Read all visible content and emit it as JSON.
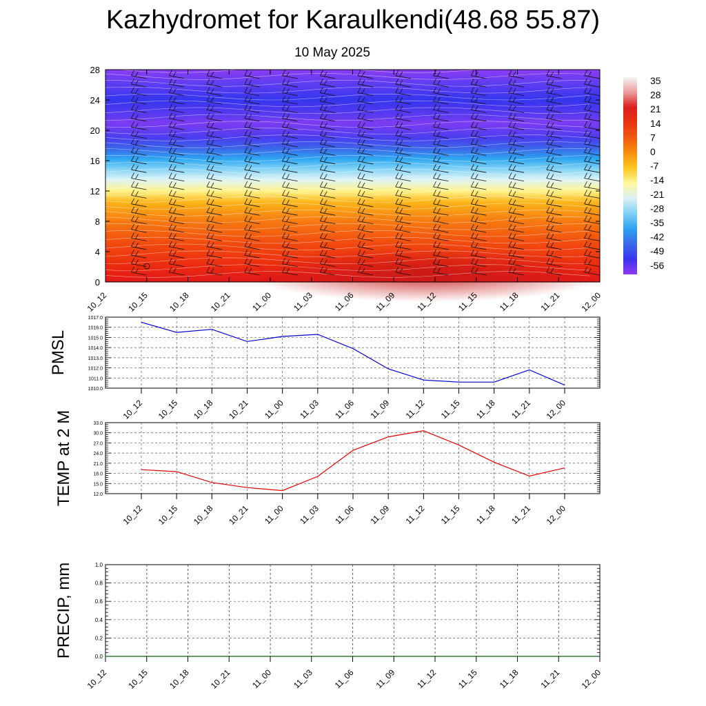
{
  "header": {
    "title": "Kazhydromet for Karaulkendi(48.68 55.87)",
    "subtitle": "10 May 2025"
  },
  "chart_data": [
    {
      "type": "heatmap",
      "name": "cross-section",
      "x_ticks": [
        "10_12",
        "10_15",
        "10_18",
        "10_21",
        "11_00",
        "11_03",
        "11_06",
        "11_09",
        "11_12",
        "11_15",
        "11_18",
        "11_21",
        "12_00"
      ],
      "y_ticks": [
        0,
        4,
        8,
        12,
        16,
        20,
        24,
        28
      ],
      "ylim": [
        0,
        28
      ],
      "colorbar": {
        "labels": [
          "35",
          "28",
          "21",
          "14",
          "7",
          "0",
          "-7",
          "-14",
          "-21",
          "-28",
          "-35",
          "-42",
          "-49",
          "-56"
        ],
        "colors": [
          "#f4f4f4",
          "#ee9999",
          "#d91e1e",
          "#e83310",
          "#f05a10",
          "#f8900c",
          "#fcc820",
          "#fff8a0",
          "#d8f0f4",
          "#7ed0f4",
          "#2ea2f0",
          "#3a6ae8",
          "#3d35f0",
          "#8a3cf0"
        ]
      },
      "field": "temperature",
      "contours": true,
      "wind_barbs": true
    },
    {
      "type": "line",
      "name": "pmsl",
      "ylabel": "PMSL",
      "x": [
        "10_12",
        "10_15",
        "10_18",
        "10_21",
        "11_00",
        "11_03",
        "11_06",
        "11_09",
        "11_12",
        "11_15",
        "11_18",
        "11_21",
        "12_00"
      ],
      "series": [
        {
          "values": [
            1016.5,
            1015.5,
            1015.8,
            1014.6,
            1015.1,
            1015.3,
            1013.9,
            1011.9,
            1010.8,
            1010.6,
            1010.6,
            1011.8,
            1010.3
          ],
          "color": "#0000cc"
        }
      ],
      "ylim": [
        1010.0,
        1017.0
      ],
      "y_ticks": [
        "1010.0",
        "1011.0",
        "1012.0",
        "1013.0",
        "1014.0",
        "1015.0",
        "1016.0",
        "1017.0"
      ],
      "grid": true
    },
    {
      "type": "line",
      "name": "temp",
      "ylabel": "TEMP at 2 M",
      "x": [
        "10_12",
        "10_15",
        "10_18",
        "10_21",
        "11_00",
        "11_03",
        "11_06",
        "11_09",
        "11_12",
        "11_15",
        "11_18",
        "11_21",
        "12_00"
      ],
      "series": [
        {
          "values": [
            19.1,
            18.5,
            15.3,
            13.8,
            12.9,
            17.1,
            24.8,
            28.8,
            30.6,
            26.4,
            21.3,
            17.2,
            19.6
          ],
          "color": "#dd0000"
        }
      ],
      "ylim": [
        12.0,
        33.0
      ],
      "y_ticks": [
        "12.0",
        "15.0",
        "18.0",
        "21.0",
        "24.0",
        "27.0",
        "30.0",
        "33.0"
      ],
      "grid": true
    },
    {
      "type": "line",
      "name": "precip",
      "ylabel": "PRECIP, mm",
      "x": [
        "10_12",
        "10_15",
        "10_18",
        "10_21",
        "11_00",
        "11_03",
        "11_06",
        "11_09",
        "11_12",
        "11_15",
        "11_18",
        "11_21",
        "12_00"
      ],
      "series": [
        {
          "values": [
            0,
            0,
            0,
            0,
            0,
            0,
            0,
            0,
            0,
            0,
            0,
            0,
            0
          ],
          "color": "#006600"
        }
      ],
      "ylim": [
        0.0,
        1.0
      ],
      "y_ticks": [
        "0.0",
        "0.2",
        "0.4",
        "0.6",
        "0.8",
        "1.0"
      ],
      "grid": true
    }
  ]
}
